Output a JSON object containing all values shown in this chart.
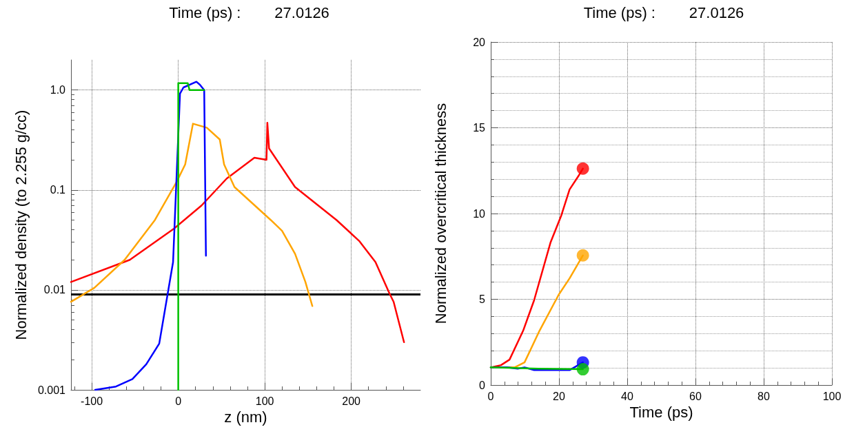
{
  "chart_data": [
    {
      "type": "line",
      "title": "Time (ps) :        27.0126",
      "xlabel": "z (nm)",
      "ylabel": "Normalized density (to 2.255 g/cc)",
      "log": "y",
      "grid": true,
      "line_style": "solid",
      "xlim": [
        -124,
        280
      ],
      "xticks": [
        -100,
        0,
        100,
        200
      ],
      "ylim": [
        0.001,
        2
      ],
      "yticks": [
        0.001,
        0.01,
        0.1,
        {
          "value": 1,
          "label": "1.0"
        }
      ],
      "ref_lines": [
        {
          "axis": "y",
          "value": 0.009,
          "color": "#000000"
        }
      ],
      "series": [
        {
          "color": "#ff0000",
          "x": [
            -124,
            -56,
            -5,
            27,
            56,
            88,
            102,
            103,
            105,
            135,
            183,
            209,
            228,
            244,
            249,
            261
          ],
          "values": [
            0.012,
            0.02,
            0.041,
            0.07,
            0.13,
            0.21,
            0.2,
            0.47,
            0.26,
            0.107,
            0.05,
            0.031,
            0.019,
            0.0093,
            0.0076,
            0.003
          ]
        },
        {
          "color": "#ffa500",
          "x": [
            -124,
            -97,
            -62,
            -27,
            -2,
            8,
            17,
            33,
            48,
            53,
            65,
            107,
            120,
            135,
            147,
            155
          ],
          "values": [
            0.0076,
            0.0105,
            0.02,
            0.05,
            0.12,
            0.18,
            0.46,
            0.42,
            0.32,
            0.18,
            0.107,
            0.05,
            0.039,
            0.023,
            0.012,
            0.0069
          ]
        },
        {
          "color": "#0000ff",
          "x": [
            -96,
            -72,
            -53,
            -37,
            -22,
            -6,
            2,
            6,
            21,
            25,
            30,
            32
          ],
          "values": [
            0.001,
            0.00108,
            0.00128,
            0.0018,
            0.0029,
            0.019,
            0.92,
            1.06,
            1.21,
            1.13,
            1.0,
            0.022
          ]
        },
        {
          "color": "#00c000",
          "x": [
            0,
            0,
            11,
            13,
            30
          ],
          "values": [
            0.001,
            1.17,
            1.17,
            1.0,
            1.0
          ]
        }
      ]
    },
    {
      "type": "line",
      "title": "Time (ps) :        27.0126",
      "xlabel": "Time (ps)",
      "ylabel": "Normalized overcritical thickness",
      "grid": true,
      "line_style": "solid",
      "xlim": [
        0,
        100
      ],
      "xticks": [
        0,
        20,
        40,
        60,
        80,
        100
      ],
      "ylim": [
        0,
        20
      ],
      "yticks": [
        0,
        5,
        10,
        15,
        20
      ],
      "series": [
        {
          "color": "#ff0000",
          "x": [
            0,
            3,
            5.5,
            9.5,
            12.7,
            17.5,
            20.7,
            23.1,
            25.9,
            27
          ],
          "values": [
            1.03,
            1.16,
            1.48,
            3.17,
            4.94,
            8.3,
            9.9,
            11.4,
            12.25,
            12.62
          ]
        },
        {
          "color": "#ffa500",
          "x": [
            0,
            7,
            9.9,
            14.3,
            19.9,
            23.1,
            27
          ],
          "values": [
            1.03,
            1.03,
            1.32,
            3.17,
            5.26,
            6.22,
            7.56
          ]
        },
        {
          "color": "#0000ff",
          "x": [
            0,
            4.7,
            7.9,
            9.9,
            12.7,
            23.1,
            27
          ],
          "values": [
            1.03,
            1.03,
            0.95,
            1.03,
            0.87,
            0.87,
            1.32
          ]
        },
        {
          "color": "#00c000",
          "x": [
            0,
            14,
            27
          ],
          "values": [
            1.03,
            0.95,
            0.92
          ]
        },
        {
          "type": "scatter",
          "color": "#ff0000",
          "x": [
            27
          ],
          "values": [
            12.62
          ]
        },
        {
          "type": "scatter",
          "color": "#ffa500",
          "x": [
            27
          ],
          "values": [
            7.56
          ]
        },
        {
          "type": "scatter",
          "color": "#0000ff",
          "x": [
            27
          ],
          "values": [
            1.32
          ]
        },
        {
          "type": "scatter",
          "color": "#00c000",
          "x": [
            27
          ],
          "values": [
            0.92
          ]
        }
      ]
    }
  ]
}
